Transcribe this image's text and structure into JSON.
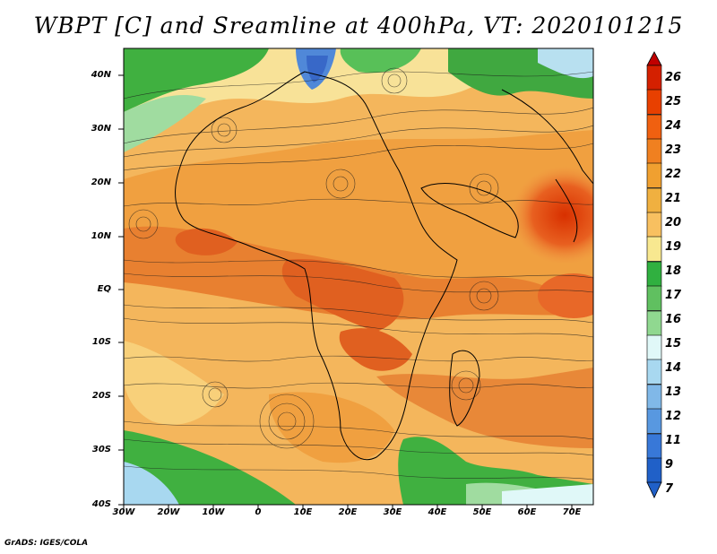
{
  "title": "WBPT [C] and Sreamline at 400hPa, VT: 2020101215",
  "credit": "GrADS: IGES/COLA",
  "axes": {
    "y_labels": [
      "40N",
      "30N",
      "20N",
      "10N",
      "EQ",
      "10S",
      "20S",
      "30S",
      "40S"
    ],
    "x_labels": [
      "30W",
      "20W",
      "10W",
      "0",
      "10E",
      "20E",
      "30E",
      "40E",
      "50E",
      "60E",
      "70E"
    ],
    "lat_range": [
      -40,
      45
    ],
    "lon_range": [
      -30,
      75
    ]
  },
  "colorbar": {
    "labels": [
      "26",
      "25",
      "24",
      "23",
      "22",
      "21",
      "20",
      "19",
      "18",
      "17",
      "16",
      "15",
      "14",
      "13",
      "12",
      "11",
      "9",
      "7"
    ],
    "colors": [
      "#c00000",
      "#d42000",
      "#e84000",
      "#f06010",
      "#f08020",
      "#f0a030",
      "#f8c060",
      "#f8e890",
      "#30b040",
      "#60c060",
      "#90d890",
      "#e0f8f8",
      "#a8d8f0",
      "#80b8e8",
      "#5898e0",
      "#3878d8",
      "#2060c8"
    ]
  }
}
